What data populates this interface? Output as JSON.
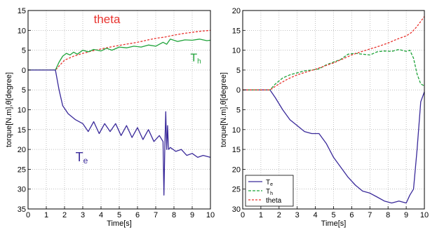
{
  "colors": {
    "te": "#3a2a9a",
    "th": "#1fa33a",
    "theta": "#e8332e"
  },
  "chart_data": [
    {
      "type": "line",
      "title": "",
      "xlabel": "Time[s]",
      "ylabel": "torque[N.m],θ[degree]",
      "xlim": [
        0,
        10
      ],
      "ylim": [
        -35,
        15
      ],
      "xticks": [
        0,
        1,
        2,
        3,
        4,
        5,
        6,
        7,
        8,
        9,
        10
      ],
      "yticks": [
        15,
        10,
        5,
        0,
        -5,
        -10,
        -15,
        -20,
        -25,
        -30,
        -35
      ],
      "ytick_labels": [
        "15",
        "10",
        "5",
        "0",
        "5",
        "10",
        "15",
        "20",
        "25",
        "30",
        "35"
      ],
      "grid": true,
      "annotations": [
        {
          "text": "theta",
          "series": "theta"
        },
        {
          "text": "Th",
          "main": "T",
          "sub": "h",
          "series": "Th"
        },
        {
          "text": "Te",
          "main": "T",
          "sub": "e",
          "series": "Te"
        }
      ],
      "series": [
        {
          "key": "theta",
          "color_key": "theta",
          "style": "dashed",
          "x": [
            0,
            1.5,
            1.8,
            2.0,
            2.5,
            3.0,
            3.5,
            4.0,
            4.5,
            5.0,
            5.5,
            6.0,
            6.5,
            7.0,
            7.5,
            8.0,
            8.5,
            9.0,
            9.5,
            10.0
          ],
          "y": [
            0,
            0,
            1.5,
            2.5,
            3.5,
            4.2,
            4.8,
            5.3,
            5.8,
            6.2,
            6.6,
            7.0,
            7.5,
            8.0,
            8.3,
            8.8,
            9.2,
            9.5,
            9.8,
            10.0
          ]
        },
        {
          "key": "Th",
          "color_key": "th",
          "style": "solid",
          "x": [
            0,
            1.5,
            1.7,
            1.9,
            2.1,
            2.3,
            2.5,
            2.7,
            3.0,
            3.3,
            3.6,
            4.0,
            4.3,
            4.6,
            5.0,
            5.4,
            5.8,
            6.2,
            6.6,
            7.0,
            7.4,
            7.6,
            7.8,
            8.2,
            8.6,
            9.0,
            9.4,
            9.8,
            10.0
          ],
          "y": [
            0,
            0,
            2.0,
            3.5,
            4.2,
            3.8,
            4.5,
            4.0,
            5.0,
            4.6,
            5.2,
            4.8,
            5.5,
            5.0,
            5.8,
            5.6,
            6.0,
            5.8,
            6.3,
            6.0,
            7.0,
            6.5,
            7.8,
            7.2,
            7.6,
            7.5,
            7.8,
            7.4,
            7.5
          ]
        },
        {
          "key": "Te",
          "color_key": "te",
          "style": "solid",
          "x": [
            0,
            1.5,
            1.7,
            1.9,
            2.2,
            2.6,
            3.0,
            3.3,
            3.6,
            3.9,
            4.2,
            4.5,
            4.8,
            5.1,
            5.4,
            5.7,
            6.0,
            6.3,
            6.6,
            6.9,
            7.2,
            7.4,
            7.45,
            7.5,
            7.55,
            7.6,
            7.65,
            7.7,
            7.8,
            8.1,
            8.4,
            8.7,
            9.0,
            9.3,
            9.6,
            10.0
          ],
          "y": [
            0,
            0,
            -5,
            -9,
            -11,
            -12.5,
            -13.5,
            -15.5,
            -13,
            -16,
            -13.5,
            -15.5,
            -13.5,
            -16.5,
            -14,
            -17,
            -14.5,
            -17.5,
            -15,
            -18,
            -16.5,
            -18,
            -31.5,
            -19,
            -10.5,
            -20,
            -14,
            -20,
            -19.5,
            -20.5,
            -20,
            -21.5,
            -21,
            -22,
            -21.5,
            -22
          ]
        }
      ]
    },
    {
      "type": "line",
      "title": "",
      "xlabel": "Time[s]",
      "ylabel": "torque[N.m],θ[degree]",
      "xlim": [
        0,
        10
      ],
      "ylim": [
        -30,
        20
      ],
      "xticks": [
        0,
        1,
        2,
        3,
        4,
        5,
        6,
        7,
        8,
        9,
        10
      ],
      "yticks": [
        20,
        15,
        10,
        5,
        0,
        -5,
        -10,
        -15,
        -20,
        -25,
        -30
      ],
      "ytick_labels": [
        "20",
        "15",
        "10",
        "5",
        "0",
        "5",
        "10",
        "15",
        "20",
        "25",
        "30"
      ],
      "grid": true,
      "legend_position": "bottom-left",
      "legend": [
        {
          "text": "Te",
          "main": "T",
          "sub": "e",
          "series": "Te"
        },
        {
          "text": "Th",
          "main": "T",
          "sub": "h",
          "series": "Th"
        },
        {
          "text": "theta",
          "main": "theta",
          "sub": "",
          "series": "theta"
        }
      ],
      "series": [
        {
          "key": "Te",
          "color_key": "te",
          "style": "solid",
          "x": [
            0,
            1.5,
            1.8,
            2.2,
            2.6,
            3.0,
            3.4,
            3.8,
            4.0,
            4.2,
            4.6,
            5.0,
            5.4,
            5.8,
            6.2,
            6.6,
            7.0,
            7.4,
            7.8,
            8.2,
            8.6,
            9.0,
            9.2,
            9.4,
            9.6,
            9.8,
            10.0
          ],
          "y": [
            0,
            0,
            -2,
            -5,
            -7.5,
            -9,
            -10.5,
            -11,
            -11,
            -11,
            -13.5,
            -17,
            -19.5,
            -22,
            -24,
            -25.5,
            -26,
            -27,
            -28,
            -28.5,
            -28,
            -28.5,
            -26.5,
            -25,
            -15,
            -3,
            -0.5
          ]
        },
        {
          "key": "Th",
          "color_key": "th",
          "style": "dashed",
          "x": [
            0,
            1.5,
            1.8,
            2.2,
            2.6,
            3.0,
            3.4,
            3.8,
            4.2,
            4.6,
            5.0,
            5.4,
            5.8,
            6.2,
            6.6,
            7.0,
            7.4,
            7.8,
            8.2,
            8.6,
            9.0,
            9.2,
            9.4,
            9.6,
            9.8,
            10.0
          ],
          "y": [
            0,
            0,
            1.5,
            3,
            3.8,
            4.3,
            4.8,
            5,
            5.3,
            6.3,
            7,
            7.7,
            9,
            9.2,
            9.0,
            8.8,
            9.6,
            9.8,
            9.7,
            10.2,
            9.7,
            10,
            8,
            4,
            1.5,
            1
          ]
        },
        {
          "key": "theta",
          "color_key": "theta",
          "style": "dashed",
          "x": [
            0,
            1.5,
            2.0,
            2.5,
            3.0,
            3.5,
            4.0,
            4.5,
            5.0,
            5.5,
            6.0,
            6.5,
            7.0,
            7.5,
            8.0,
            8.5,
            9.0,
            9.3,
            9.6,
            10.0
          ],
          "y": [
            0,
            0,
            1.5,
            2.8,
            3.8,
            4.5,
            5.2,
            6.0,
            6.8,
            7.8,
            8.8,
            9.6,
            10.3,
            11.0,
            11.8,
            12.8,
            13.6,
            14.5,
            16,
            18.5
          ]
        }
      ]
    }
  ]
}
